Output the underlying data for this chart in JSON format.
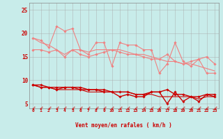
{
  "background_color": "#c8ecea",
  "grid_color": "#aaaaaa",
  "xlabel": "Vent moyen/en rafales ( km/h )",
  "xlabel_color": "#cc0000",
  "tick_color": "#cc0000",
  "xlim": [
    -0.5,
    23.5
  ],
  "ylim": [
    4.0,
    26.5
  ],
  "yticks": [
    5,
    10,
    15,
    20,
    25
  ],
  "xticks": [
    0,
    1,
    2,
    3,
    4,
    5,
    6,
    7,
    8,
    9,
    10,
    11,
    12,
    13,
    14,
    15,
    16,
    17,
    18,
    19,
    20,
    21,
    22,
    23
  ],
  "series": [
    {
      "y": [
        19.0,
        18.5,
        17.0,
        21.5,
        20.5,
        21.0,
        16.5,
        15.5,
        18.0,
        18.0,
        13.0,
        18.0,
        17.5,
        17.5,
        16.5,
        16.5,
        11.5,
        13.5,
        18.0,
        14.0,
        13.0,
        14.5,
        11.5,
        11.5
      ],
      "color": "#f08080",
      "lw": 0.8,
      "marker": "D",
      "markersize": 1.8,
      "zorder": 3
    },
    {
      "y": [
        19.0,
        18.0,
        17.5,
        16.5,
        15.5,
        16.5,
        16.5,
        16.0,
        16.5,
        16.5,
        16.5,
        16.5,
        16.0,
        15.5,
        15.5,
        15.0,
        14.5,
        14.0,
        14.0,
        13.5,
        13.5,
        13.0,
        12.5,
        12.0
      ],
      "color": "#f08080",
      "lw": 0.8,
      "marker": null,
      "zorder": 2
    },
    {
      "y": [
        16.5,
        16.5,
        16.0,
        16.5,
        15.0,
        16.5,
        15.5,
        15.0,
        15.5,
        16.0,
        16.5,
        16.0,
        15.5,
        15.5,
        15.0,
        14.5,
        14.5,
        15.5,
        14.0,
        13.5,
        14.0,
        14.5,
        15.0,
        13.5
      ],
      "color": "#f08080",
      "lw": 0.8,
      "marker": "D",
      "markersize": 1.8,
      "zorder": 3
    },
    {
      "y": [
        9.0,
        9.0,
        8.5,
        8.5,
        8.5,
        8.5,
        8.5,
        8.0,
        8.0,
        8.0,
        7.5,
        7.5,
        7.5,
        7.0,
        7.0,
        7.5,
        7.5,
        8.0,
        7.0,
        7.0,
        6.5,
        6.5,
        7.0,
        7.0
      ],
      "color": "#cc0000",
      "lw": 1.0,
      "marker": "D",
      "markersize": 1.8,
      "zorder": 4
    },
    {
      "y": [
        9.0,
        8.5,
        8.5,
        8.0,
        8.5,
        8.5,
        8.0,
        8.0,
        8.0,
        7.5,
        7.5,
        6.5,
        7.0,
        6.5,
        6.5,
        7.5,
        7.5,
        5.0,
        7.5,
        5.5,
        6.5,
        5.5,
        7.0,
        6.5
      ],
      "color": "#cc0000",
      "lw": 1.0,
      "marker": "D",
      "markersize": 1.8,
      "zorder": 4
    },
    {
      "y": [
        9.0,
        8.5,
        8.5,
        8.0,
        8.0,
        8.0,
        8.0,
        7.5,
        7.5,
        7.5,
        7.5,
        7.5,
        7.5,
        7.0,
        7.0,
        7.0,
        6.5,
        6.5,
        6.5,
        6.5,
        6.5,
        6.0,
        6.5,
        6.5
      ],
      "color": "#cc0000",
      "lw": 0.8,
      "marker": null,
      "zorder": 2
    }
  ],
  "figsize": [
    3.2,
    2.0
  ],
  "dpi": 100
}
